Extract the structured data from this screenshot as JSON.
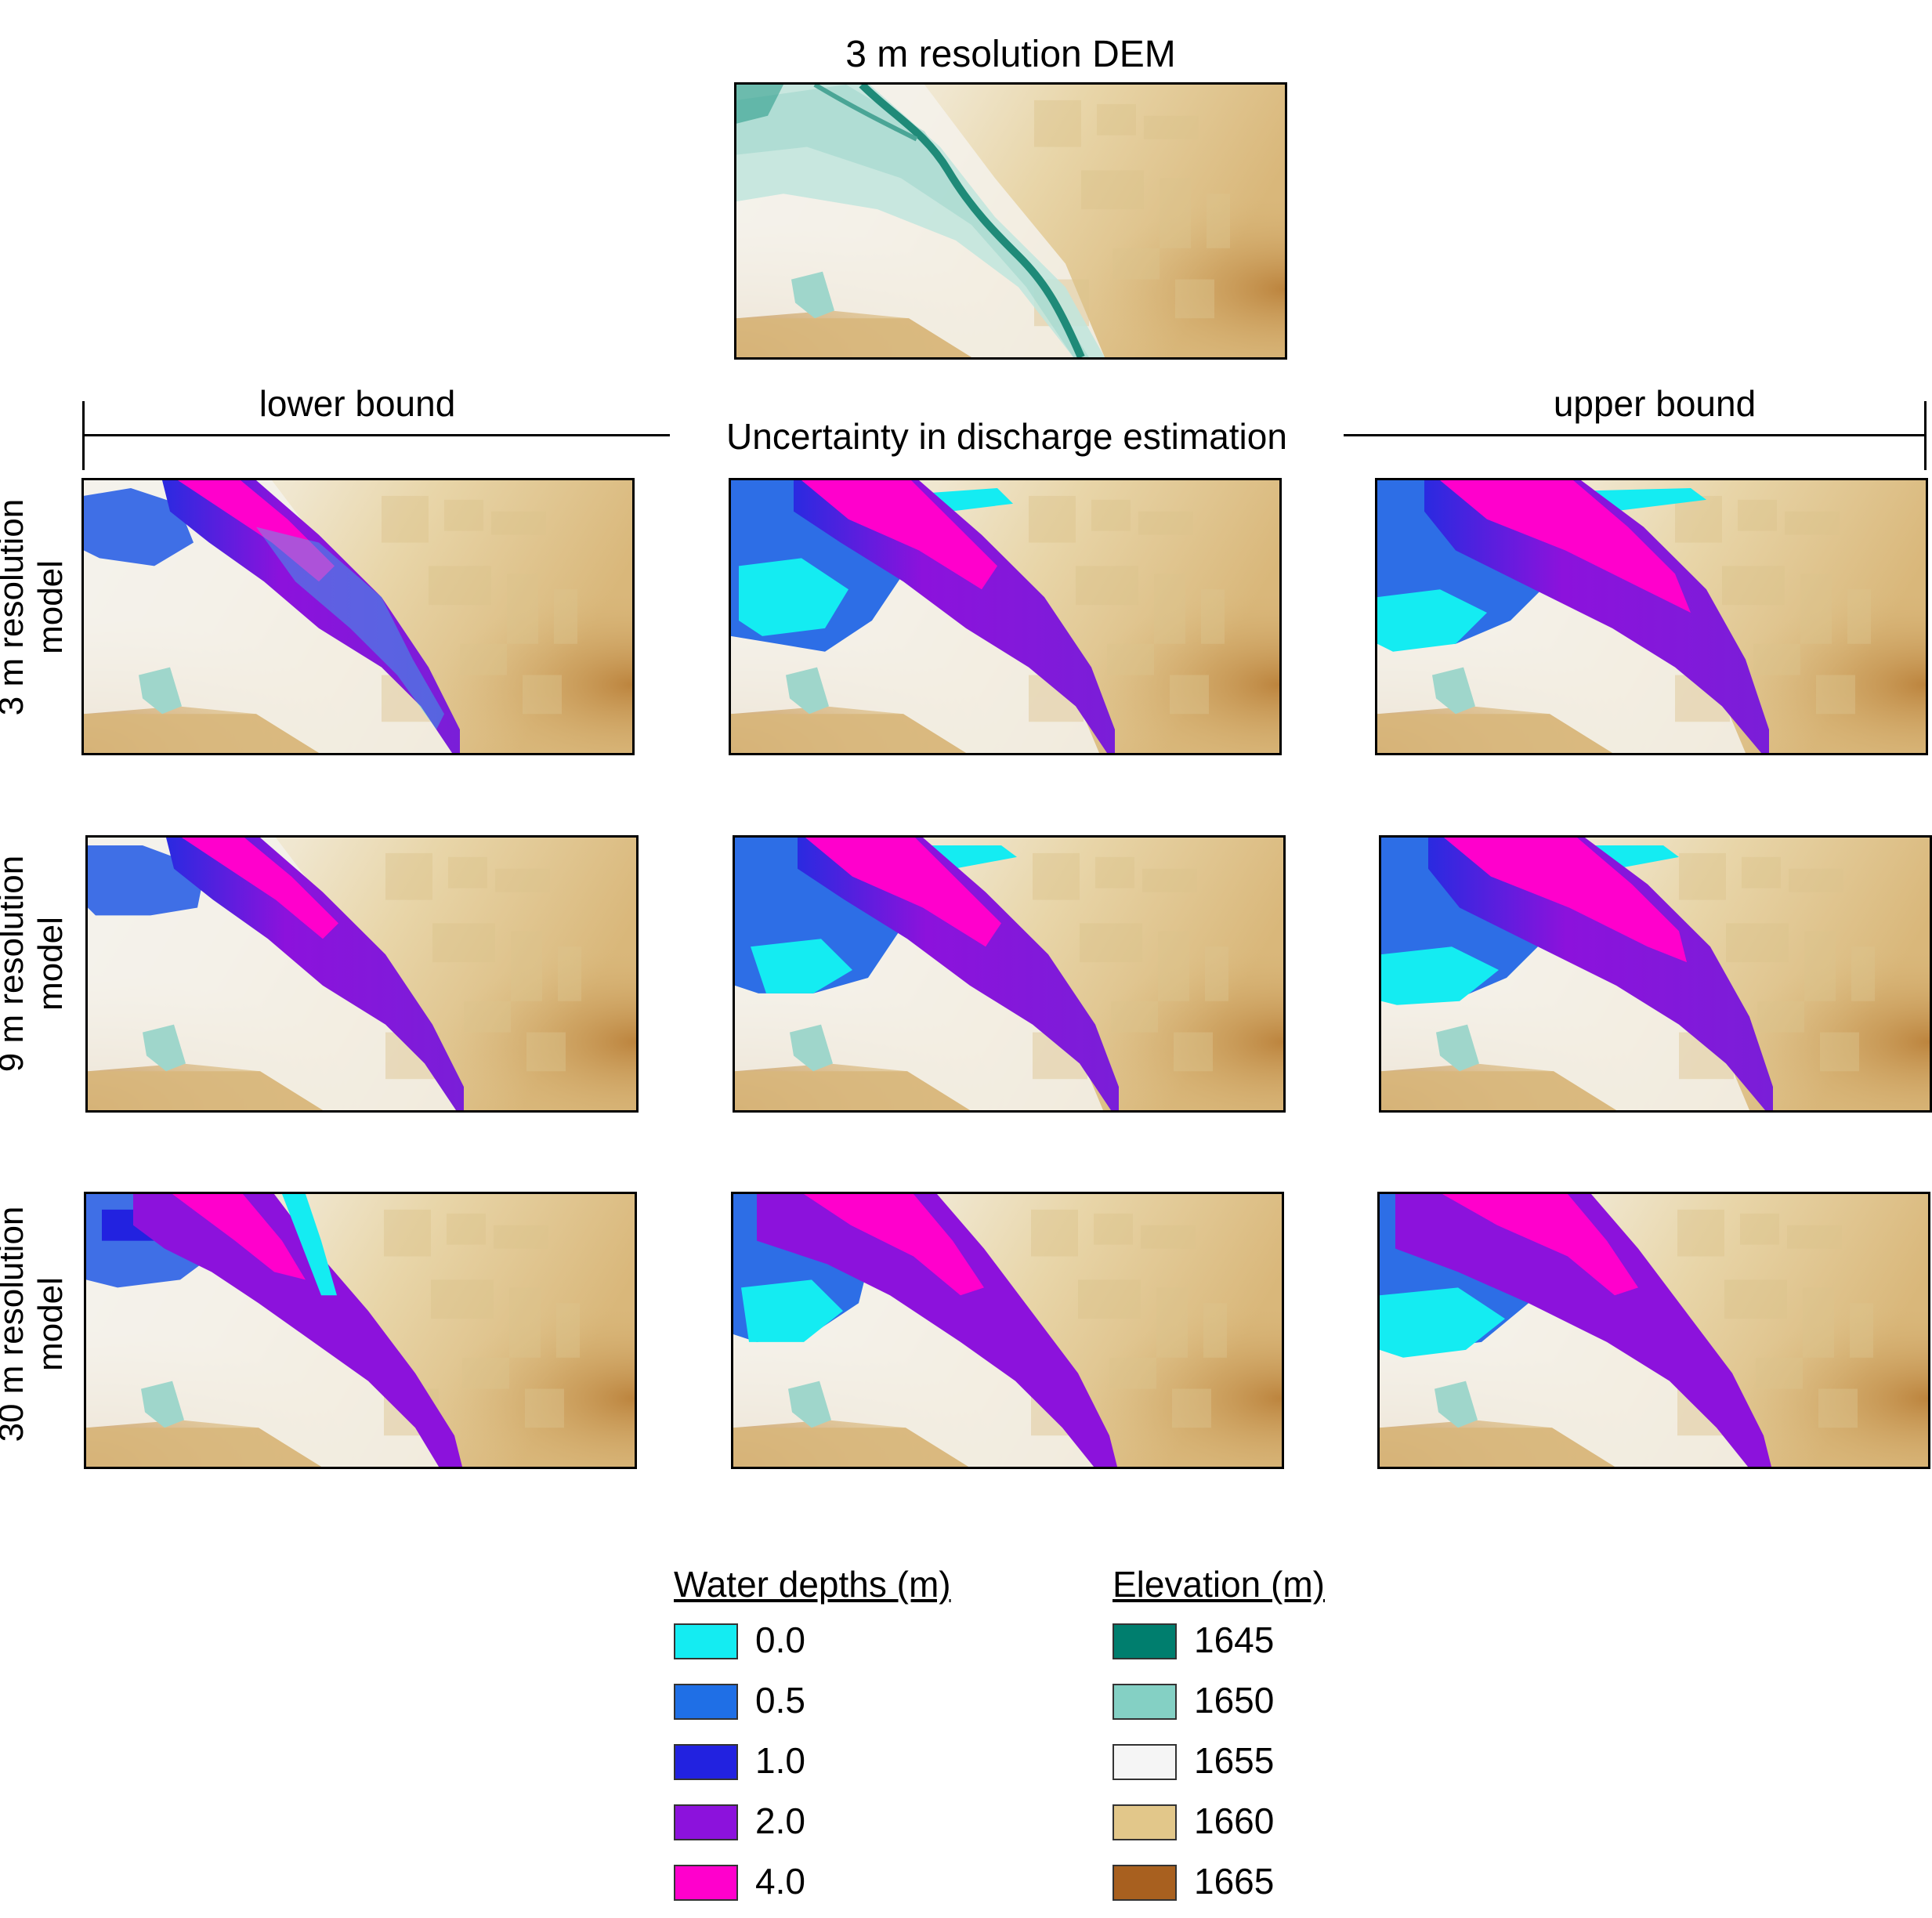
{
  "dem_title": "3 m resolution DEM",
  "columns": {
    "lower": "lower bound",
    "middle": "Uncertainty in discharge estimation",
    "upper": "upper bound"
  },
  "rows": [
    {
      "line1": "3 m resolution",
      "line2": "model"
    },
    {
      "line1": "9 m resolution",
      "line2": "model"
    },
    {
      "line1": "30 m resolution",
      "line2": "model"
    }
  ],
  "legend": {
    "water": {
      "title": "Water depths (m)",
      "items": [
        {
          "label": "0.0",
          "color": "#14ecf2"
        },
        {
          "label": "0.5",
          "color": "#1f6fe6"
        },
        {
          "label": "1.0",
          "color": "#2222e0"
        },
        {
          "label": "2.0",
          "color": "#8c12dc"
        },
        {
          "label": "4.0",
          "color": "#ff00cc"
        }
      ]
    },
    "elevation": {
      "title": "Elevation (m)",
      "items": [
        {
          "label": "1645",
          "color": "#007e6e"
        },
        {
          "label": "1650",
          "color": "#84d0c4"
        },
        {
          "label": "1655",
          "color": "#f5f5f5"
        },
        {
          "label": "1660",
          "color": "#e2c78a"
        },
        {
          "label": "1665",
          "color": "#a8601f"
        }
      ]
    }
  }
}
